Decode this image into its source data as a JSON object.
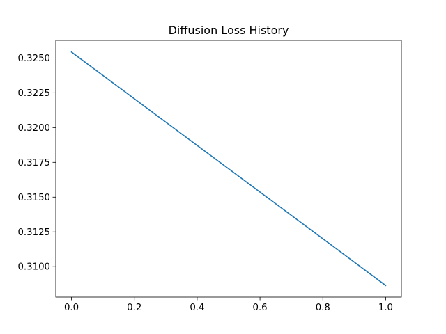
{
  "chart_data": {
    "type": "line",
    "title": "Diffusion Loss History",
    "xlabel": "",
    "ylabel": "",
    "series": [
      {
        "x": [
          0.0,
          1.0
        ],
        "values": [
          0.32543,
          0.30865
        ],
        "color": "#1f77b4"
      }
    ],
    "xlim": [
      -0.05,
      1.05
    ],
    "ylim": [
      0.30781,
      0.32627
    ],
    "x_ticks": [
      0.0,
      0.2,
      0.4,
      0.6,
      0.8,
      1.0
    ],
    "x_tick_labels": [
      "0.0",
      "0.2",
      "0.4",
      "0.6",
      "0.8",
      "1.0"
    ],
    "y_ticks": [
      0.31,
      0.3125,
      0.315,
      0.3175,
      0.32,
      0.3225,
      0.325
    ],
    "y_tick_labels": [
      "0.3100",
      "0.3125",
      "0.3150",
      "0.3175",
      "0.3200",
      "0.3225",
      "0.3250"
    ],
    "grid": false,
    "legend": "none"
  }
}
